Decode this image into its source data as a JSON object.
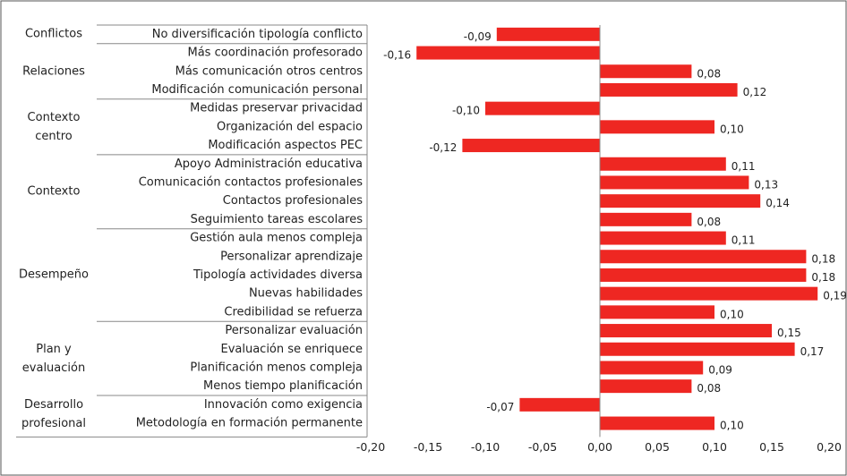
{
  "chart_data": {
    "type": "bar",
    "orientation": "horizontal",
    "color": "#ee2722",
    "xlim": [
      -0.2,
      0.2
    ],
    "xticks": [
      {
        "value": -0.2,
        "label": "-0,20"
      },
      {
        "value": -0.15,
        "label": "-0,15"
      },
      {
        "value": -0.1,
        "label": "-0,10"
      },
      {
        "value": -0.05,
        "label": "-0,05"
      },
      {
        "value": 0,
        "label": "0,00"
      },
      {
        "value": 0.05,
        "label": "0,05"
      },
      {
        "value": 0.1,
        "label": "0,10"
      },
      {
        "value": 0.15,
        "label": "0,15"
      },
      {
        "value": 0.2,
        "label": "0,20"
      }
    ],
    "groups": [
      {
        "name": "Conflictos",
        "categories": [
          "No diversificación tipología conflicto"
        ],
        "values": [
          -0.09
        ],
        "value_labels": [
          "-0,09"
        ]
      },
      {
        "name": "Relaciones",
        "categories": [
          "Más coordinación profesorado",
          "Más comunicación otros centros",
          "Modificación comunicación personal"
        ],
        "values": [
          -0.16,
          0.08,
          0.12
        ],
        "value_labels": [
          "-0,16",
          "0,08",
          "0,12"
        ]
      },
      {
        "name": "Contexto centro",
        "categories": [
          "Medidas preservar privacidad",
          "Organización del espacio",
          "Modificación aspectos PEC"
        ],
        "values": [
          -0.1,
          0.1,
          -0.12
        ],
        "value_labels": [
          "-0,10",
          "0,10",
          "-0,12"
        ]
      },
      {
        "name": "Contexto",
        "categories": [
          "Apoyo Administración educativa",
          "Comunicación contactos profesionales",
          "Contactos profesionales",
          "Seguimiento tareas escolares"
        ],
        "values": [
          0.11,
          0.13,
          0.14,
          0.08
        ],
        "value_labels": [
          "0,11",
          "0,13",
          "0,14",
          "0,08"
        ]
      },
      {
        "name": "Desempeño",
        "categories": [
          "Gestión aula menos compleja",
          "Personalizar aprendizaje",
          "Tipología actividades diversa",
          "Nuevas habilidades",
          "Credibilidad se refuerza"
        ],
        "values": [
          0.11,
          0.18,
          0.18,
          0.19,
          0.1
        ],
        "value_labels": [
          "0,11",
          "0,18",
          "0,18",
          "0,19",
          "0,10"
        ]
      },
      {
        "name": "Plan y evaluación",
        "categories": [
          "Personalizar evaluación",
          "Evaluación se enriquece",
          "Planificación menos compleja",
          "Menos tiempo planificación"
        ],
        "values": [
          0.15,
          0.17,
          0.09,
          0.08
        ],
        "value_labels": [
          "0,15",
          "0,17",
          "0,09",
          "0,08"
        ]
      },
      {
        "name": "Desarrollo profesional",
        "categories": [
          "Innovación como exigencia",
          "Metodología en formación permanente"
        ],
        "values": [
          -0.07,
          0.1
        ],
        "value_labels": [
          "-0,07",
          "0,10"
        ]
      }
    ]
  }
}
